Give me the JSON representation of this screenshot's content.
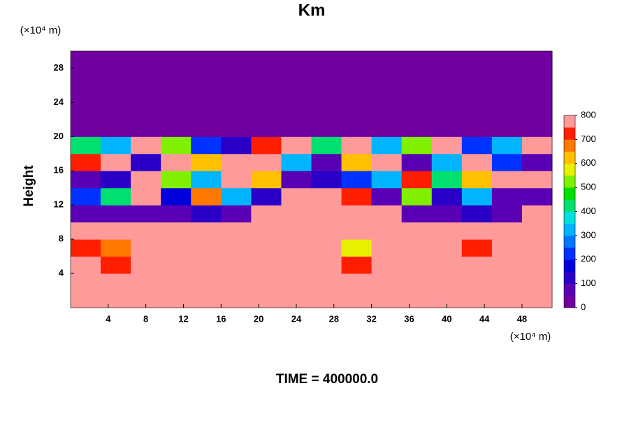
{
  "chart_data": {
    "type": "heatmap",
    "title": "Km",
    "ylabel": "Height",
    "xunit": "(×10⁴ m)",
    "yunit": "(×10⁴ m)",
    "footer": "TIME = 400000.0",
    "xlim": [
      0,
      51.2
    ],
    "ylim": [
      0,
      30
    ],
    "xticks": [
      4,
      8,
      12,
      16,
      20,
      24,
      28,
      32,
      36,
      40,
      44,
      48
    ],
    "yticks": [
      4,
      8,
      12,
      16,
      20,
      24,
      28
    ],
    "x": [
      1.6,
      4.8,
      8,
      11.2,
      14.4,
      17.6,
      20.8,
      24,
      27.2,
      30.4,
      33.6,
      36.8,
      40,
      43.2,
      46.4,
      49.6
    ],
    "y": [
      1,
      3,
      5,
      7,
      9,
      11,
      13,
      15,
      17,
      19,
      21,
      23,
      25,
      27,
      29
    ],
    "z": [
      [
        800,
        800,
        800,
        800,
        800,
        800,
        800,
        800,
        800,
        800,
        800,
        800,
        800,
        800,
        800,
        800
      ],
      [
        800,
        800,
        800,
        800,
        750,
        800,
        800,
        800,
        800,
        800,
        800,
        800,
        800,
        800,
        800,
        750
      ],
      [
        800,
        700,
        800,
        800,
        800,
        800,
        800,
        800,
        800,
        700,
        800,
        800,
        800,
        800,
        800,
        800
      ],
      [
        700,
        650,
        800,
        800,
        800,
        800,
        750,
        800,
        800,
        550,
        800,
        800,
        750,
        700,
        750,
        800
      ],
      [
        800,
        750,
        800,
        800,
        800,
        800,
        800,
        800,
        800,
        750,
        800,
        800,
        800,
        800,
        800,
        800
      ],
      [
        50,
        50,
        50,
        50,
        100,
        50,
        750,
        800,
        800,
        800,
        800,
        50,
        50,
        100,
        50,
        800
      ],
      [
        200,
        400,
        800,
        150,
        650,
        300,
        100,
        800,
        800,
        700,
        50,
        500,
        100,
        300,
        50,
        50
      ],
      [
        50,
        100,
        800,
        500,
        300,
        800,
        600,
        50,
        100,
        200,
        300,
        700,
        400,
        600,
        800,
        800
      ],
      [
        700,
        800,
        100,
        800,
        600,
        800,
        800,
        300,
        50,
        600,
        800,
        50,
        300,
        800,
        200,
        50
      ],
      [
        400,
        300,
        800,
        500,
        200,
        100,
        700,
        800,
        400,
        800,
        300,
        500,
        800,
        200,
        300,
        800
      ],
      [
        0,
        0,
        0,
        0,
        0,
        0,
        0,
        0,
        0,
        0,
        0,
        0,
        0,
        0,
        0,
        0
      ],
      [
        0,
        0,
        0,
        0,
        0,
        0,
        0,
        0,
        0,
        0,
        0,
        0,
        0,
        0,
        0,
        0
      ],
      [
        0,
        0,
        0,
        0,
        0,
        0,
        0,
        0,
        0,
        0,
        0,
        0,
        0,
        0,
        0,
        0
      ],
      [
        0,
        0,
        0,
        0,
        0,
        0,
        0,
        0,
        0,
        0,
        0,
        0,
        0,
        0,
        0,
        0
      ],
      [
        0,
        0,
        0,
        0,
        0,
        0,
        0,
        0,
        0,
        0,
        0,
        0,
        0,
        0,
        0,
        0
      ]
    ],
    "zlim": [
      0,
      800
    ],
    "zticks": [
      0,
      100,
      200,
      300,
      400,
      500,
      600,
      700,
      800
    ],
    "colors": [
      "#7000a0",
      "#5a00b4",
      "#2a00c8",
      "#0000dc",
      "#0032ff",
      "#0078ff",
      "#00b4ff",
      "#00e0e0",
      "#00e070",
      "#00e000",
      "#80f000",
      "#e8f000",
      "#ffc000",
      "#ff7800",
      "#ff1e00",
      "#ff9a9a"
    ]
  }
}
